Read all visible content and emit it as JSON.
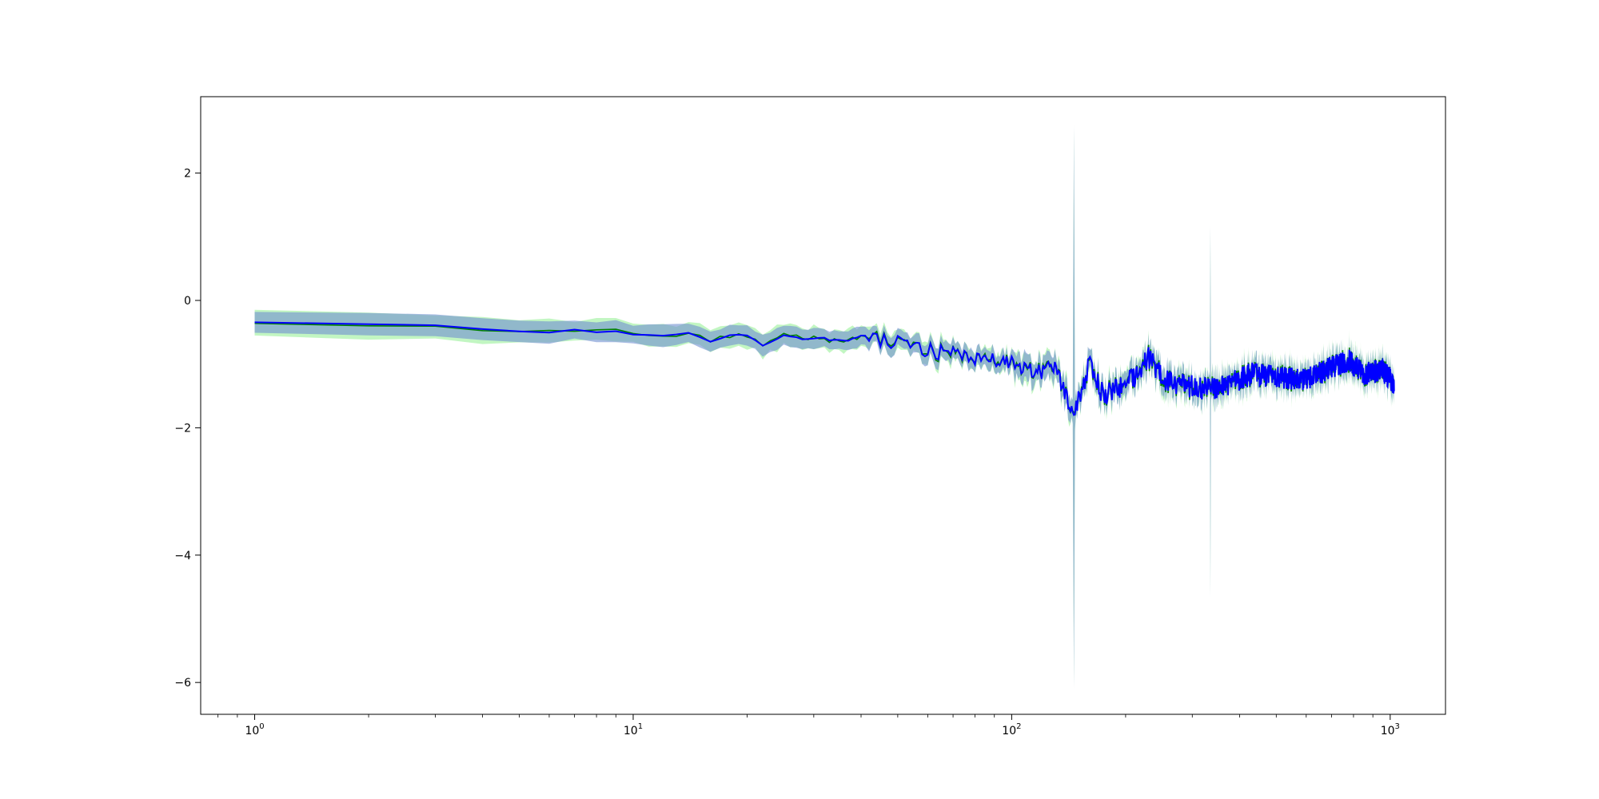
{
  "chart_data": {
    "type": "line",
    "x_scale": "log",
    "xlim": [
      0.72,
      1400
    ],
    "ylim": [
      -6.5,
      3.2
    ],
    "grid": false,
    "legend": "none",
    "x_ticks": [
      {
        "value": 1,
        "base": "10",
        "exp": "0"
      },
      {
        "value": 10,
        "base": "10",
        "exp": "1"
      },
      {
        "value": 100,
        "base": "10",
        "exp": "2"
      },
      {
        "value": 1000,
        "base": "10",
        "exp": "3"
      }
    ],
    "y_ticks": [
      {
        "value": 2,
        "label": "2"
      },
      {
        "value": 0,
        "label": "0"
      },
      {
        "value": -2,
        "label": "−2"
      },
      {
        "value": -4,
        "label": "−4"
      },
      {
        "value": -6,
        "label": "−6"
      }
    ],
    "x_min": 1,
    "x_max": 1024,
    "colors": {
      "blue_line": "#0000ff",
      "green_line": "#008000",
      "blue_band": "#6f8fd0",
      "green_band": "#90ee90"
    },
    "band_halfwidth": 0.12,
    "spikes": [
      {
        "x": 146,
        "upper": 2.75,
        "lower": -6.1,
        "mean": -1.8
      },
      {
        "x": 335,
        "upper": 1.2,
        "lower": -4.7,
        "mean": -1.4
      }
    ],
    "mean_profile": [
      [
        1,
        -0.35
      ],
      [
        2,
        -0.38
      ],
      [
        3,
        -0.4
      ],
      [
        4,
        -0.44
      ],
      [
        5,
        -0.47
      ],
      [
        6,
        -0.5
      ],
      [
        7,
        -0.47
      ],
      [
        8,
        -0.5
      ],
      [
        9,
        -0.48
      ],
      [
        10,
        -0.55
      ],
      [
        12,
        -0.55
      ],
      [
        14,
        -0.5
      ],
      [
        16,
        -0.65
      ],
      [
        18,
        -0.55
      ],
      [
        20,
        -0.55
      ],
      [
        22,
        -0.7
      ],
      [
        25,
        -0.55
      ],
      [
        28,
        -0.6
      ],
      [
        32,
        -0.6
      ],
      [
        36,
        -0.65
      ],
      [
        40,
        -0.55
      ],
      [
        45,
        -0.65
      ],
      [
        50,
        -0.65
      ],
      [
        60,
        -0.78
      ],
      [
        70,
        -0.85
      ],
      [
        80,
        -0.9
      ],
      [
        90,
        -0.95
      ],
      [
        100,
        -0.95
      ],
      [
        115,
        -1.15
      ],
      [
        130,
        -1.05
      ],
      [
        146,
        -1.8
      ],
      [
        160,
        -1.0
      ],
      [
        175,
        -1.5
      ],
      [
        190,
        -1.4
      ],
      [
        210,
        -1.2
      ],
      [
        230,
        -0.9
      ],
      [
        260,
        -1.3
      ],
      [
        300,
        -1.35
      ],
      [
        335,
        -1.4
      ],
      [
        380,
        -1.3
      ],
      [
        430,
        -1.15
      ],
      [
        500,
        -1.2
      ],
      [
        600,
        -1.25
      ],
      [
        700,
        -1.05
      ],
      [
        780,
        -0.95
      ],
      [
        850,
        -1.15
      ],
      [
        950,
        -1.1
      ],
      [
        1024,
        -1.3
      ]
    ]
  }
}
